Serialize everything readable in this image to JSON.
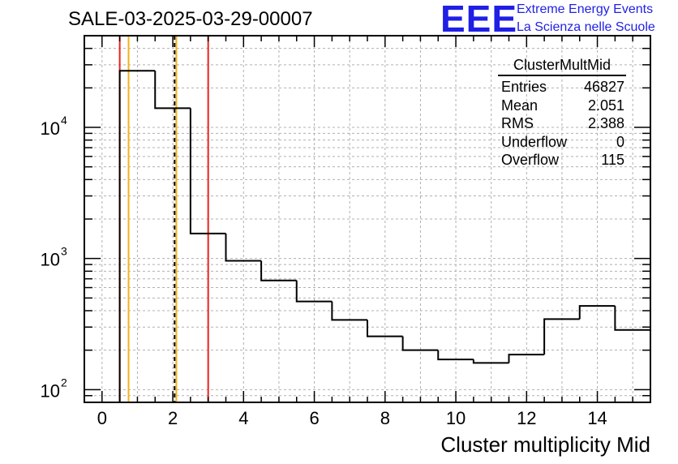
{
  "header": {
    "run_label": "SALE-03-2025-03-29-00007",
    "logo_text": "EEE",
    "logo_line1": "Extreme Energy Events",
    "logo_line2": "La Scienza nelle Scuole"
  },
  "stats": {
    "title": "ClusterMultMid",
    "rows": [
      {
        "label": "Entries",
        "value": "46827"
      },
      {
        "label": "Mean",
        "value": "2.051"
      },
      {
        "label": "RMS",
        "value": "2.388"
      },
      {
        "label": "Underflow",
        "value": "0"
      },
      {
        "label": "Overflow",
        "value": "115"
      }
    ]
  },
  "chart_data": {
    "type": "histogram",
    "title": "SALE-03-2025-03-29-00007",
    "xlabel": "Cluster multiplicity Mid",
    "ylabel": "",
    "xlim": [
      -0.5,
      15.5
    ],
    "ylim": [
      80,
      50000
    ],
    "yscale": "log",
    "grid": true,
    "bin_edges": [
      0.5,
      1.5,
      2.5,
      3.5,
      4.5,
      5.5,
      6.5,
      7.5,
      8.5,
      9.5,
      10.5,
      11.5,
      12.5,
      13.5,
      14.5,
      15.5
    ],
    "counts": [
      27000,
      14000,
      1550,
      960,
      680,
      470,
      340,
      255,
      200,
      170,
      160,
      185,
      345,
      435,
      285
    ],
    "x_ticks": [
      0,
      2,
      4,
      6,
      8,
      10,
      12,
      14
    ],
    "y_ticks": [
      {
        "value": 100,
        "label": "10",
        "exp": "2"
      },
      {
        "value": 1000,
        "label": "10",
        "exp": "3"
      },
      {
        "value": 10000,
        "label": "10",
        "exp": "4"
      }
    ],
    "vertical_lines": [
      {
        "x": 0.5,
        "color": "#e8231c",
        "style": "solid"
      },
      {
        "x": 0.75,
        "color": "#f2b21a",
        "style": "solid"
      },
      {
        "x": 2.051,
        "color": "#000000",
        "style": "dashed"
      },
      {
        "x": 2.1,
        "color": "#f2b21a",
        "style": "solid"
      },
      {
        "x": 3.0,
        "color": "#e8231c",
        "style": "solid"
      }
    ]
  }
}
